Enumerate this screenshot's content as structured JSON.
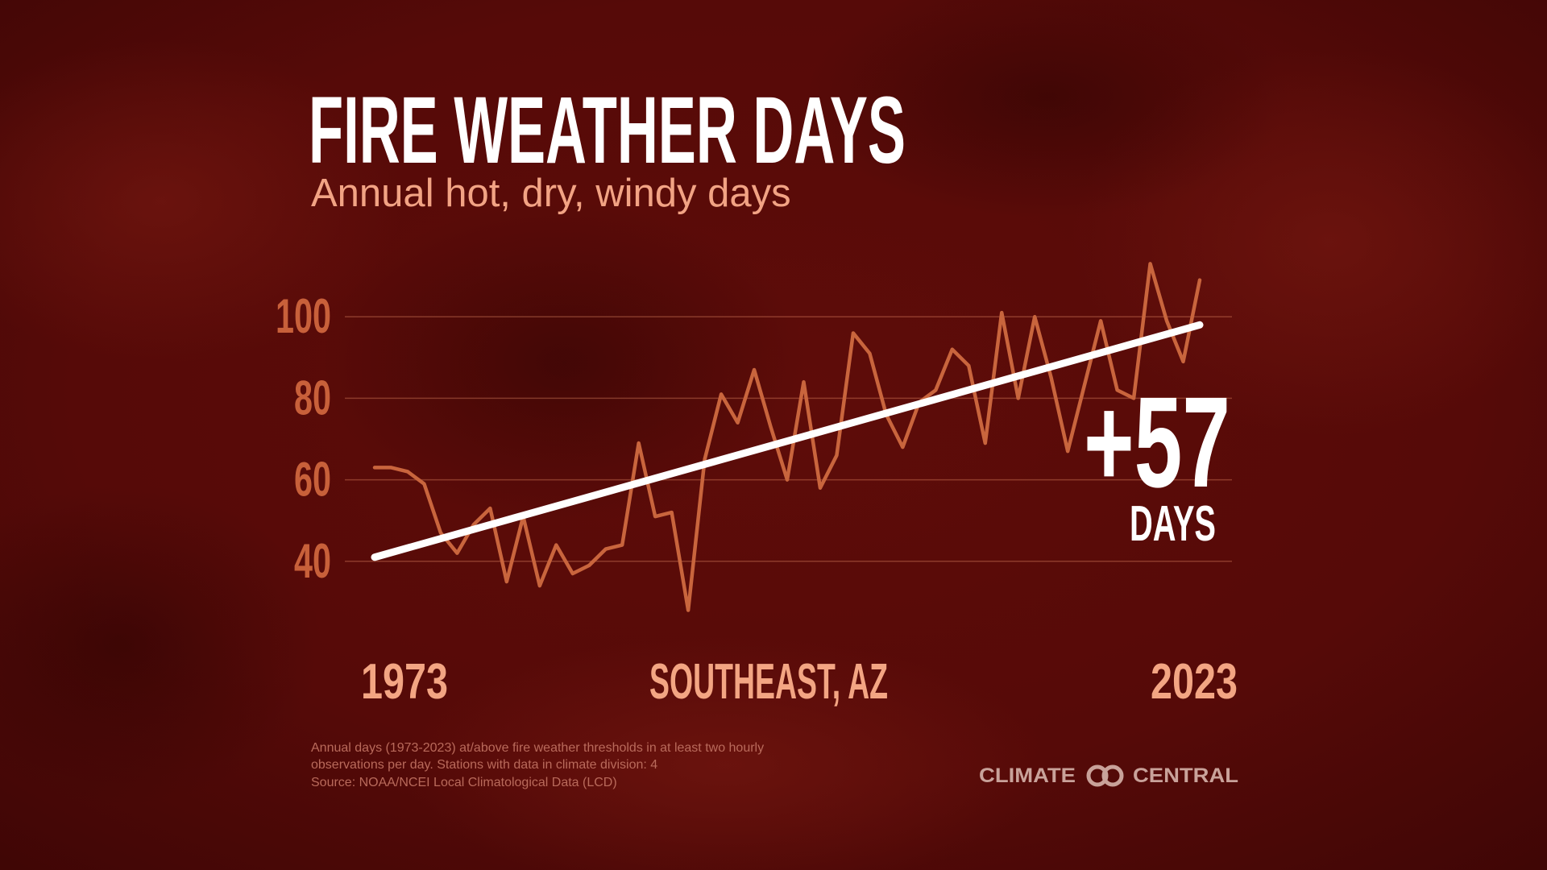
{
  "chart_data": {
    "type": "line",
    "title": "FIRE WEATHER DAYS",
    "subtitle": "Annual hot, dry, windy days",
    "location": "SOUTHEAST, AZ",
    "xlim": [
      1973,
      2023
    ],
    "xticks": [
      1973,
      2023
    ],
    "ylim": [
      20,
      120
    ],
    "yticks": [
      40,
      60,
      80,
      100
    ],
    "grid": true,
    "x": [
      1973,
      1974,
      1975,
      1976,
      1977,
      1978,
      1979,
      1980,
      1981,
      1982,
      1983,
      1984,
      1985,
      1986,
      1987,
      1988,
      1989,
      1990,
      1991,
      1992,
      1993,
      1994,
      1995,
      1996,
      1997,
      1998,
      1999,
      2000,
      2001,
      2002,
      2003,
      2004,
      2005,
      2006,
      2007,
      2008,
      2009,
      2010,
      2011,
      2012,
      2013,
      2014,
      2015,
      2016,
      2017,
      2018,
      2019,
      2020,
      2021,
      2022,
      2023
    ],
    "series": [
      {
        "color": "#c9653d",
        "values": [
          63,
          63,
          62,
          59,
          47,
          42,
          49,
          53,
          35,
          51,
          34,
          44,
          37,
          39,
          43,
          44,
          69,
          51,
          52,
          28,
          65,
          81,
          74,
          87,
          73,
          60,
          84,
          58,
          66,
          96,
          91,
          76,
          68,
          79,
          82,
          92,
          88,
          69,
          101,
          80,
          100,
          85,
          67,
          83,
          99,
          82,
          80,
          113,
          99,
          89,
          109
        ]
      }
    ],
    "trend_line": {
      "color": "#ffffff",
      "x": [
        1973,
        2023
      ],
      "values": [
        41,
        98
      ]
    },
    "annotation": {
      "text": "+57",
      "unit": "DAYS"
    },
    "footnote": [
      "Annual days (1973-2023) at/above fire weather thresholds in at least two hourly",
      "observations per day. Stations with data in climate division: 4",
      "Source: NOAA/NCEI Local Climatological Data (LCD)"
    ],
    "logo": [
      "CLIMATE",
      "CENTRAL"
    ]
  }
}
